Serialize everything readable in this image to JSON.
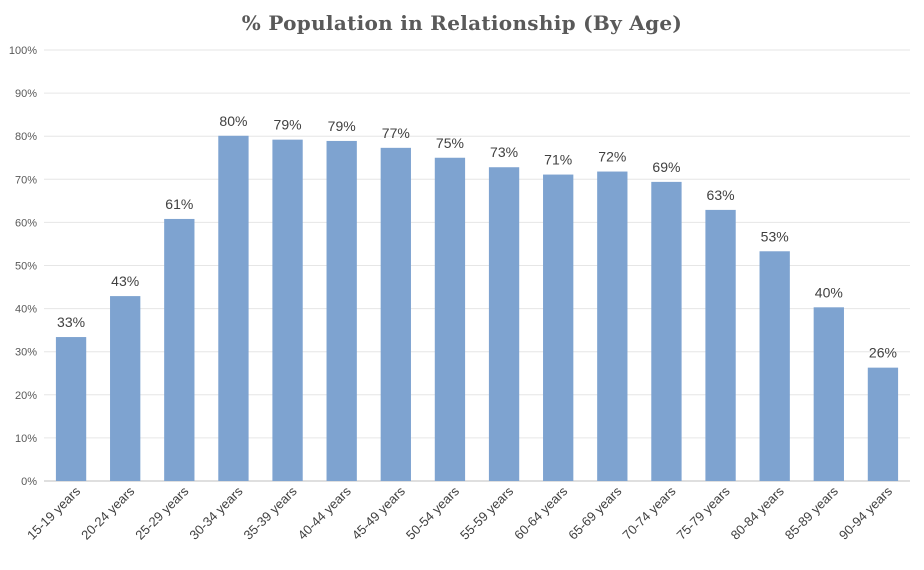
{
  "chart_data": {
    "type": "bar",
    "title": "% Population in Relationship (By Age)",
    "xlabel": "",
    "ylabel": "",
    "ylim": [
      0,
      100
    ],
    "yticks": [
      "0%",
      "10%",
      "20%",
      "30%",
      "40%",
      "50%",
      "60%",
      "70%",
      "80%",
      "90%",
      "100%"
    ],
    "grid": true,
    "legend": "none",
    "bar_color": "#7EA3D0",
    "categories": [
      "15-19 years",
      "20-24 years",
      "25-29 years",
      "30-34 years",
      "35-39 years",
      "40-44 years",
      "45-49 years",
      "50-54 years",
      "55-59 years",
      "60-64 years",
      "65-69 years",
      "70-74 years",
      "75-79 years",
      "80-84 years",
      "85-89 years",
      "90-94 years"
    ],
    "values": [
      33.4,
      42.9,
      60.8,
      80.1,
      79.2,
      78.9,
      77.3,
      75.0,
      72.8,
      71.1,
      71.8,
      69.4,
      62.9,
      53.3,
      40.3,
      26.3
    ],
    "data_labels": [
      "33%",
      "43%",
      "61%",
      "80%",
      "79%",
      "79%",
      "77%",
      "75%",
      "73%",
      "71%",
      "72%",
      "69%",
      "63%",
      "53%",
      "40%",
      "26%"
    ]
  }
}
